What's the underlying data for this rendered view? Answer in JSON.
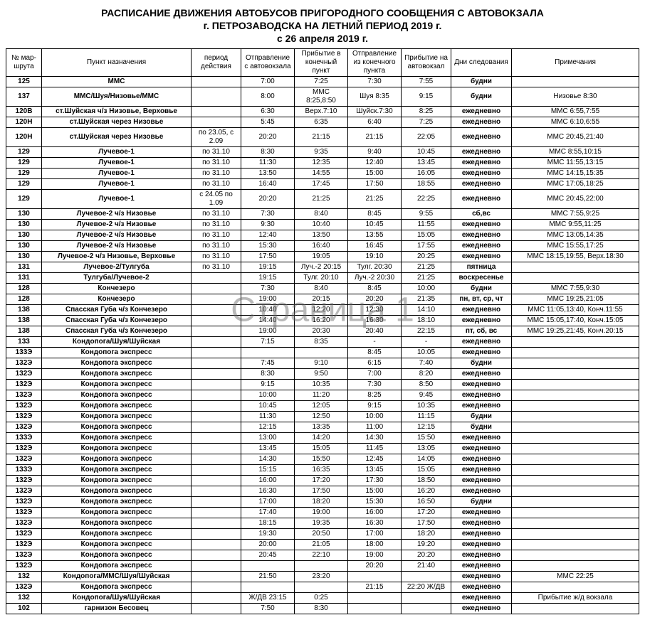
{
  "title1": "РАСПИСАНИЕ ДВИЖЕНИЯ АВТОБУСОВ ПРИГОРОДНОГО СООБЩЕНИЯ С АВТОВОКЗАЛА",
  "title2": "г. ПЕТРОЗАВОДСКА НА ЛЕТНИЙ ПЕРИОД 2019 г.",
  "title3": "с 26 апреля 2019 г.",
  "watermark": "Страница 1",
  "columns": [
    "№ мар-шрута",
    "Пункт назначения",
    "период действия",
    "Отправление с автовокзала",
    "Прибытие в конечный пункт",
    "Отправление из конечного пункта",
    "Прибытие на автовокзал",
    "Дни следования",
    "Примечания"
  ],
  "rows": [
    [
      "125",
      "ММС",
      "",
      "7:00",
      "7:25",
      "7:30",
      "7:55",
      "будни",
      ""
    ],
    [
      "137",
      "ММС/Шуя/Низовье/ММС",
      "",
      "8:00",
      "ММС 8:25,8:50",
      "Шуя 8:35",
      "9:15",
      "будни",
      "Низовье 8:30"
    ],
    [
      "120В",
      "ст.Шуйская ч/з Низовье, Верховье",
      "",
      "6:30",
      "Верх.7:10",
      "Шуйск.7:30",
      "8:25",
      "ежедневно",
      "ММС 6:55,7:55"
    ],
    [
      "120Н",
      "ст.Шуйская через Низовье",
      "",
      "5:45",
      "6:35",
      "6:40",
      "7:25",
      "ежедневно",
      "ММС 6:10,6:55"
    ],
    [
      "120Н",
      "ст.Шуйская через Низовье",
      "по 23.05, с 2.09",
      "20:20",
      "21:15",
      "21:15",
      "22:05",
      "ежедневно",
      "ММС 20:45,21:40"
    ],
    [
      "129",
      "Лучевое-1",
      "по 31.10",
      "8:30",
      "9:35",
      "9:40",
      "10:45",
      "ежедневно",
      "ММС 8:55,10:15"
    ],
    [
      "129",
      "Лучевое-1",
      "по 31.10",
      "11:30",
      "12:35",
      "12:40",
      "13:45",
      "ежедневно",
      "ММС 11:55,13:15"
    ],
    [
      "129",
      "Лучевое-1",
      "по 31.10",
      "13:50",
      "14:55",
      "15:00",
      "16:05",
      "ежедневно",
      "ММС 14:15,15:35"
    ],
    [
      "129",
      "Лучевое-1",
      "по 31.10",
      "16:40",
      "17:45",
      "17:50",
      "18:55",
      "ежедневно",
      "ММС 17:05,18:25"
    ],
    [
      "129",
      "Лучевое-1",
      "с 24.05 по 1.09",
      "20:20",
      "21:25",
      "21:25",
      "22:25",
      "ежедневно",
      "ММС 20:45,22:00"
    ],
    [
      "130",
      "Лучевое-2 ч/з Низовье",
      "по 31.10",
      "7:30",
      "8:40",
      "8:45",
      "9:55",
      "сб,вс",
      "ММС 7:55,9:25"
    ],
    [
      "130",
      "Лучевое-2 ч/з Низовье",
      "по 31.10",
      "9:30",
      "10:40",
      "10:45",
      "11:55",
      "ежедневно",
      "ММС 9:55,11:25"
    ],
    [
      "130",
      "Лучевое-2 ч/з Низовье",
      "по 31.10",
      "12:40",
      "13:50",
      "13:55",
      "15:05",
      "ежедневно",
      "ММС 13:05,14:35"
    ],
    [
      "130",
      "Лучевое-2 ч/з Низовье",
      "по 31.10",
      "15:30",
      "16:40",
      "16:45",
      "17:55",
      "ежедневно",
      "ММС 15:55,17:25"
    ],
    [
      "130",
      "Лучевое-2 ч/з Низовье, Верховье",
      "по 31.10",
      "17:50",
      "19:05",
      "19:10",
      "20:25",
      "ежедневно",
      "ММС 18:15,19:55, Верх.18:30"
    ],
    [
      "131",
      "Лучевое-2/Тулгуба",
      "по 31.10",
      "19:15",
      "Луч.-2 20:15",
      "Тулг. 20:30",
      "21:25",
      "пятница",
      ""
    ],
    [
      "131",
      "Тулгуба/Лучевое-2",
      "",
      "19:15",
      "Тулг. 20:10",
      "Луч.-2 20:30",
      "21:25",
      "воскресенье",
      ""
    ],
    [
      "128",
      "Кончезеро",
      "",
      "7:30",
      "8:40",
      "8:45",
      "10:00",
      "будни",
      "ММС 7:55,9:30"
    ],
    [
      "128",
      "Кончезеро",
      "",
      "19:00",
      "20:15",
      "20:20",
      "21:35",
      "пн, вт, ср, чт",
      "ММС 19:25,21:05"
    ],
    [
      "138",
      "Спасская Губа ч/з Кончезеро",
      "",
      "10:40",
      "12:20",
      "12:30",
      "14:10",
      "ежедневно",
      "ММС 11:05,13:40, Конч.11:55"
    ],
    [
      "138",
      "Спасская Губа ч/з Кончезеро",
      "",
      "14:40",
      "16:20",
      "16:30",
      "18:10",
      "ежедневно",
      "ММС 15:05,17:40, Конч.15:05"
    ],
    [
      "138",
      "Спасская Губа ч/з Кончезеро",
      "",
      "19:00",
      "20:30",
      "20:40",
      "22:15",
      "пт, сб, вс",
      "ММС 19:25,21:45, Конч.20:15"
    ],
    [
      "133",
      "Кондопога/Шуя/Шуйская",
      "",
      "7:15",
      "8:35",
      "-",
      "-",
      "ежедневно",
      ""
    ],
    [
      "133Э",
      "Кондопога экспресс",
      "",
      "",
      "",
      "8:45",
      "10:05",
      "ежедневно",
      ""
    ],
    [
      "132Э",
      "Кондопога экспресс",
      "",
      "7:45",
      "9:10",
      "6:15",
      "7:40",
      "будни",
      ""
    ],
    [
      "132Э",
      "Кондопога экспресс",
      "",
      "8:30",
      "9:50",
      "7:00",
      "8:20",
      "ежедневно",
      ""
    ],
    [
      "132Э",
      "Кондопога экспресс",
      "",
      "9:15",
      "10:35",
      "7:30",
      "8:50",
      "ежедневно",
      ""
    ],
    [
      "132Э",
      "Кондопога экспресс",
      "",
      "10:00",
      "11:20",
      "8:25",
      "9:45",
      "ежедневно",
      ""
    ],
    [
      "132Э",
      "Кондопога экспресс",
      "",
      "10:45",
      "12:05",
      "9:15",
      "10:35",
      "ежедневно",
      ""
    ],
    [
      "132Э",
      "Кондопога экспресс",
      "",
      "11:30",
      "12:50",
      "10:00",
      "11:15",
      "будни",
      ""
    ],
    [
      "132Э",
      "Кондопога экспресс",
      "",
      "12:15",
      "13:35",
      "11:00",
      "12:15",
      "будни",
      ""
    ],
    [
      "133Э",
      "Кондопога экспресс",
      "",
      "13:00",
      "14:20",
      "14:30",
      "15:50",
      "ежедневно",
      ""
    ],
    [
      "132Э",
      "Кондопога экспресс",
      "",
      "13:45",
      "15:05",
      "11:45",
      "13:05",
      "ежедневно",
      ""
    ],
    [
      "132Э",
      "Кондопога экспресс",
      "",
      "14:30",
      "15:50",
      "12:45",
      "14:05",
      "ежедневно",
      ""
    ],
    [
      "133Э",
      "Кондопога экспресс",
      "",
      "15:15",
      "16:35",
      "13:45",
      "15:05",
      "ежедневно",
      ""
    ],
    [
      "132Э",
      "Кондопога экспресс",
      "",
      "16:00",
      "17:20",
      "17:30",
      "18:50",
      "ежедневно",
      ""
    ],
    [
      "132Э",
      "Кондопога экспресс",
      "",
      "16:30",
      "17:50",
      "15:00",
      "16:20",
      "ежедневно",
      ""
    ],
    [
      "132Э",
      "Кондопога экспресс",
      "",
      "17:00",
      "18:20",
      "15:30",
      "16:50",
      "будни",
      ""
    ],
    [
      "132Э",
      "Кондопога экспресс",
      "",
      "17:40",
      "19:00",
      "16:00",
      "17:20",
      "ежедневно",
      ""
    ],
    [
      "132Э",
      "Кондопога экспресс",
      "",
      "18:15",
      "19:35",
      "16:30",
      "17:50",
      "ежедневно",
      ""
    ],
    [
      "132Э",
      "Кондопога экспресс",
      "",
      "19:30",
      "20:50",
      "17:00",
      "18:20",
      "ежедневно",
      ""
    ],
    [
      "132Э",
      "Кондопога экспресс",
      "",
      "20:00",
      "21:05",
      "18:00",
      "19:20",
      "ежедневно",
      ""
    ],
    [
      "132Э",
      "Кондопога экспресс",
      "",
      "20:45",
      "22:10",
      "19:00",
      "20:20",
      "ежедневно",
      ""
    ],
    [
      "132Э",
      "Кондопога экспресс",
      "",
      "",
      "",
      "20:20",
      "21:40",
      "ежедневно",
      ""
    ],
    [
      "132",
      "Кондопога/ММС/Шуя/Шуйская",
      "",
      "21:50",
      "23:20",
      "",
      "",
      "ежедневно",
      "ММС 22:25"
    ],
    [
      "132Э",
      "Кондопога экспресс",
      "",
      "",
      "",
      "21:15",
      "22:20 Ж/ДВ",
      "ежедневно",
      ""
    ],
    [
      "132",
      "Кондопога/Шуя/Шуйская",
      "",
      "Ж/ДВ 23:15",
      "0:25",
      "",
      "",
      "ежедневно",
      "Прибытие ж/д вокзала"
    ],
    [
      "102",
      "гарнизон Бесовец",
      "",
      "7:50",
      "8:30",
      "",
      "",
      "ежедневно",
      ""
    ]
  ]
}
